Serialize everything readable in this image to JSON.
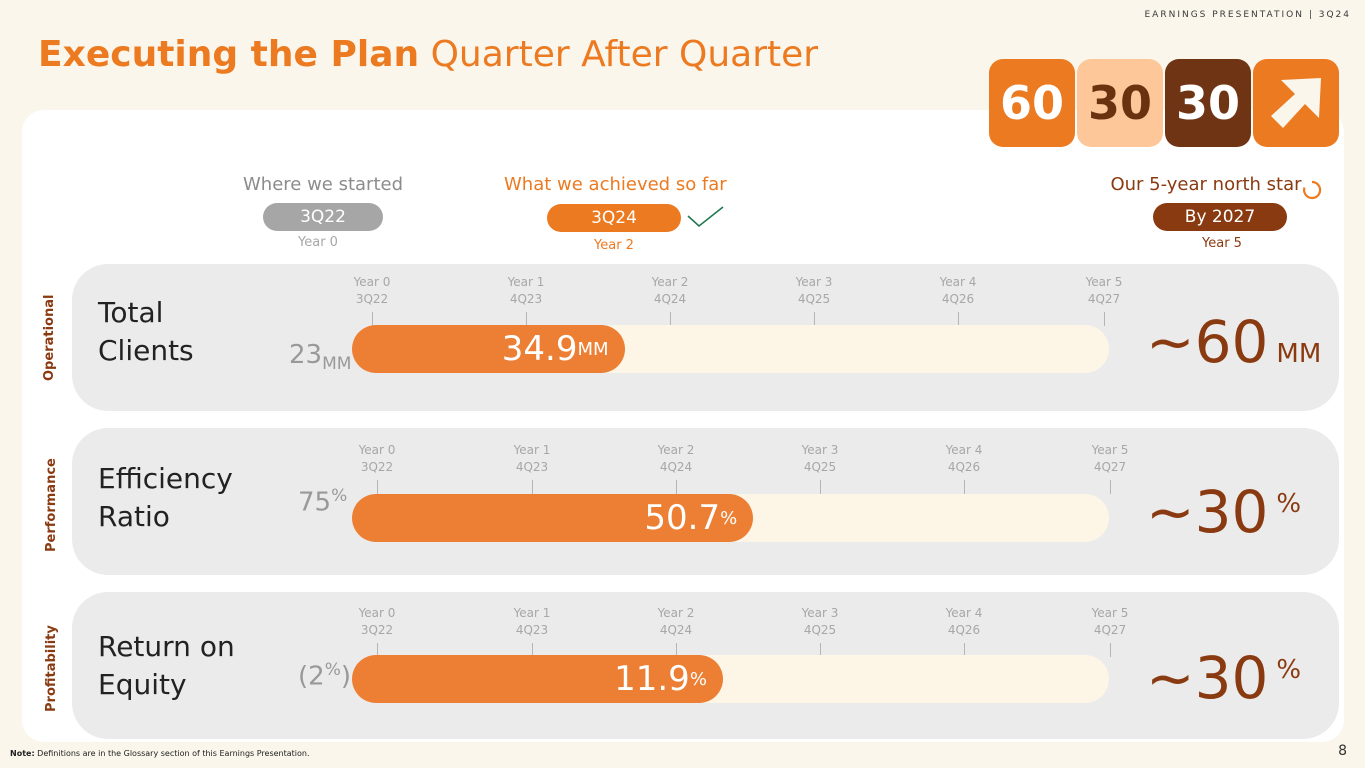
{
  "header": {
    "tag": "EARNINGS PRESENTATION | 3Q24",
    "title_bold": "Executing the Plan",
    "title_light": "Quarter After Quarter"
  },
  "badges": [
    "60",
    "30",
    "30"
  ],
  "phases": {
    "start": {
      "title": "Where we started",
      "pill": "3Q22",
      "year": "Year 0"
    },
    "now": {
      "title": "What we achieved so far",
      "pill": "3Q24",
      "year": "Year 2"
    },
    "goal": {
      "title": "Our 5-year north star",
      "pill": "By 2027",
      "year": "Year 5"
    }
  },
  "ticks": [
    {
      "year": "Year 0",
      "q": "3Q22"
    },
    {
      "year": "Year 1",
      "q": "4Q23"
    },
    {
      "year": "Year 2",
      "q": "4Q24"
    },
    {
      "year": "Year 3",
      "q": "4Q25"
    },
    {
      "year": "Year 4",
      "q": "4Q26"
    },
    {
      "year": "Year 5",
      "q": "4Q27"
    }
  ],
  "rows": [
    {
      "category": "Operational",
      "metric_line1": "Total",
      "metric_line2": "Clients",
      "start_value": "23",
      "start_unit": "MM",
      "current_value": "34.9",
      "current_unit": "MM",
      "target_prefix": "~60",
      "target_unit": "MM",
      "progress": 0.36
    },
    {
      "category": "Performance",
      "metric_line1": "Efficiency",
      "metric_line2": "Ratio",
      "start_value": "75",
      "start_unit": "%",
      "current_value": "50.7",
      "current_unit": "%",
      "target_prefix": "~30",
      "target_unit": "%",
      "progress": 0.53
    },
    {
      "category": "Profitability",
      "metric_line1": "Return on",
      "metric_line2": "Equity",
      "start_open": "(2",
      "start_unit": "%",
      "start_close": ")",
      "current_value": "11.9",
      "current_unit": "%",
      "target_prefix": "~30",
      "target_unit": "%",
      "progress": 0.49
    }
  ],
  "footer": {
    "note_label": "Note:",
    "note_text": " Definitions are in the Glossary section of this Earnings Presentation.",
    "page": "8"
  },
  "colors": {
    "accent": "#ec7a21",
    "brown": "#8a3a10",
    "dark_brown": "#6e3414",
    "peach": "#fdc79a",
    "gray_pill": "#a6a6a6",
    "check": "#1f7a52"
  }
}
